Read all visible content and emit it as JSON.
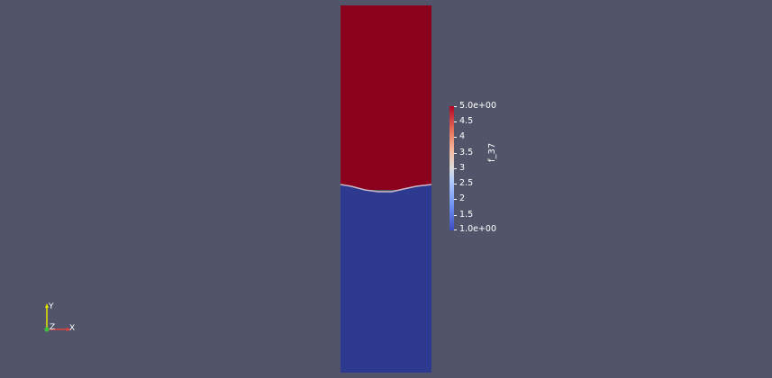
{
  "scene": {
    "background_color": "#525569",
    "field_top_color": "#8b001d",
    "field_bottom_color": "#2e3a8f",
    "interface_color": "#aeb3c8"
  },
  "colorbar": {
    "title": "f_37",
    "range": [
      1.0,
      5.0
    ],
    "colormap_low": "#3b4cc0",
    "colormap_high": "#b40426",
    "ticks": [
      "5.0e+00",
      "4.5",
      "4",
      "3.5",
      "3",
      "2.5",
      "2",
      "1.5",
      "1.0e+00"
    ]
  },
  "orientation_axes": {
    "y_label": "Y",
    "z_label": "Z",
    "x_label": "X",
    "y_color": "#e6e600",
    "x_color": "#e04040",
    "z_color": "#40c040"
  }
}
